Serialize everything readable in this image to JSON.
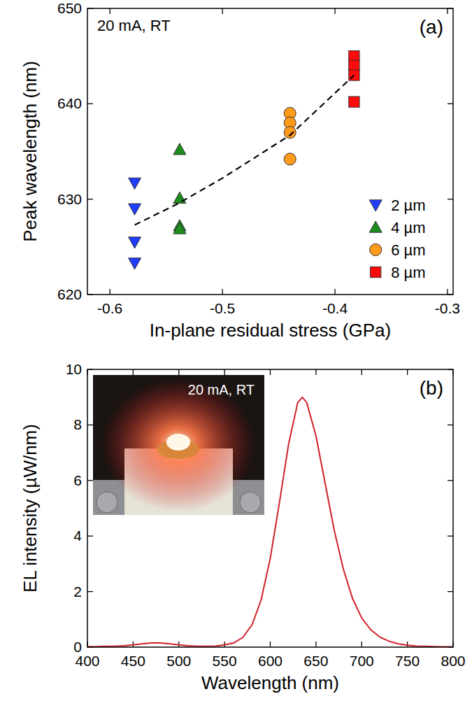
{
  "chart_data": [
    {
      "type": "scatter",
      "x_label": "In-plane residual stress (GPa)",
      "y_label": "Peak wavelength (nm)",
      "annotations": [
        "20 mA, RT",
        "(a)"
      ],
      "xlim": [
        -0.62,
        -0.295
      ],
      "xticks": [
        -0.6,
        -0.5,
        -0.4,
        -0.3
      ],
      "ylim": [
        620,
        650
      ],
      "yticks": [
        620,
        630,
        640,
        650
      ],
      "legend": "lower right",
      "series": [
        {
          "name": "2 µm",
          "color": "#1f3cff",
          "marker": "triangle-down",
          "x": [
            -0.578,
            -0.578,
            -0.578,
            -0.578
          ],
          "values": [
            631.7,
            629.0,
            625.5,
            623.3
          ]
        },
        {
          "name": "4 µm",
          "color": "#1c8c1c",
          "marker": "triangle-up",
          "x": [
            -0.538,
            -0.538,
            -0.538,
            -0.538
          ],
          "values": [
            635.2,
            630.1,
            627.2,
            626.9
          ]
        },
        {
          "name": "6 µm",
          "color": "#ff9a1a",
          "marker": "circle",
          "x": [
            -0.44,
            -0.44,
            -0.44,
            -0.44
          ],
          "values": [
            639.0,
            638.0,
            637.0,
            634.2
          ]
        },
        {
          "name": "8 µm",
          "color": "#ff0a0a",
          "marker": "square",
          "x": [
            -0.383,
            -0.383,
            -0.383,
            -0.383
          ],
          "values": [
            645.0,
            644.0,
            643.0,
            640.2
          ]
        },
        {
          "type": "line",
          "line_style": "dashed",
          "color": "#000000",
          "x": [
            -0.578,
            -0.54,
            -0.5,
            -0.44,
            -0.383
          ],
          "values": [
            627.3,
            629.5,
            632.2,
            636.7,
            643.0
          ]
        }
      ]
    },
    {
      "type": "line",
      "x_label": "Wavelength (nm)",
      "y_label": "EL intensity (µW/nm)",
      "annotations": [
        "(b)",
        "20 mA, RT"
      ],
      "xlim": [
        400,
        800
      ],
      "xticks": [
        400,
        450,
        500,
        550,
        600,
        650,
        700,
        750,
        800
      ],
      "ylim": [
        0,
        10
      ],
      "yticks": [
        0,
        2,
        4,
        6,
        8,
        10
      ],
      "x": [
        400,
        410,
        420,
        430,
        440,
        450,
        460,
        470,
        480,
        490,
        500,
        510,
        520,
        530,
        540,
        550,
        560,
        570,
        580,
        590,
        600,
        610,
        620,
        630,
        635,
        640,
        650,
        660,
        670,
        680,
        690,
        700,
        710,
        720,
        730,
        740,
        750,
        760,
        770,
        780,
        790,
        800
      ],
      "series": [
        {
          "color": "#d0202a",
          "line_style": "solid",
          "values": [
            0.02,
            0.02,
            0.03,
            0.03,
            0.05,
            0.08,
            0.12,
            0.15,
            0.15,
            0.12,
            0.08,
            0.05,
            0.03,
            0.03,
            0.04,
            0.08,
            0.15,
            0.35,
            0.8,
            1.7,
            3.2,
            5.2,
            7.3,
            8.8,
            9.0,
            8.8,
            7.6,
            5.9,
            4.2,
            2.8,
            1.75,
            1.05,
            0.62,
            0.36,
            0.21,
            0.12,
            0.07,
            0.04,
            0.03,
            0.02,
            0.01,
            0.01
          ]
        }
      ]
    }
  ]
}
